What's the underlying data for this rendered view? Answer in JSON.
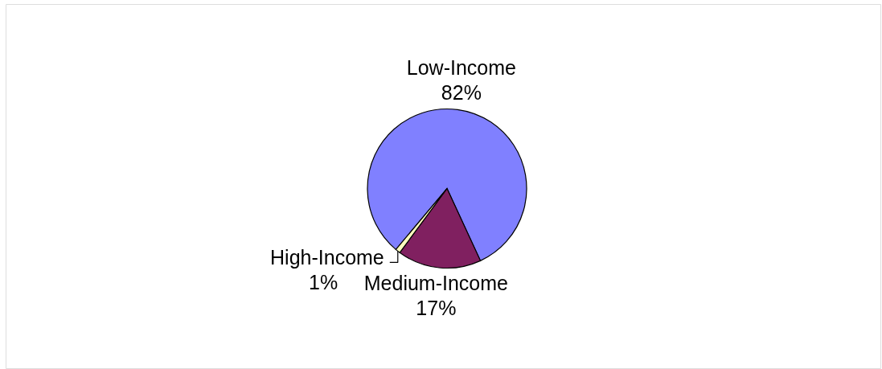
{
  "chart_data": {
    "type": "pie",
    "categories": [
      "Low-Income",
      "Medium-Income",
      "High-Income"
    ],
    "values": [
      82,
      17,
      1
    ],
    "colors": [
      "#8080ff",
      "#802060",
      "#ffffc0"
    ],
    "value_labels": [
      "82%",
      "17%",
      "1%"
    ]
  }
}
